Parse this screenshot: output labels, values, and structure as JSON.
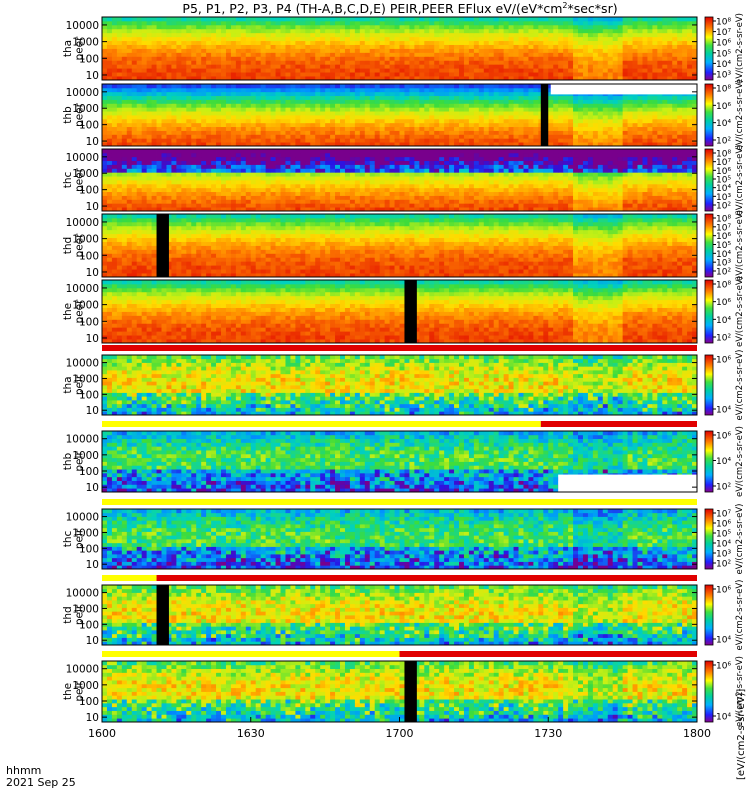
{
  "title": "P5, P1, P2, P3, P4 (TH-A,B,C,D,E) PEIR,PEER EFlux eV/(eV*cm",
  "title_sup": "2",
  "title_tail": "*sec*sr)",
  "time_axis": {
    "corner_label": "hhmm",
    "date_label": "2021 Sep 25",
    "ticks": [
      "1600",
      "1630",
      "1700",
      "1730",
      "1800"
    ],
    "range_minutes": [
      0,
      120
    ]
  },
  "colorbar_unit": "eV/(cm2-s-sr-eV)",
  "colorbar_side_label": "[eV/(cm2-s-sr-eV)]",
  "chart_data": {
    "type": "heatmap",
    "xlabel": "hhmm",
    "x_range": [
      "1600",
      "1800"
    ],
    "ylabel_unit": "eV",
    "yscale": "log",
    "colormap": "rainbow",
    "panels": [
      {
        "probe": "tha",
        "species": "peer",
        "label": [
          "tha",
          "peer"
        ],
        "yticks": [
          "10",
          "100",
          "1000",
          "10000"
        ],
        "ylim": [
          5,
          30000
        ],
        "cb_ticks": [
          "10⁸",
          "10⁷",
          "10⁶",
          "10⁵",
          "10⁴",
          "10³"
        ],
        "cb_range": [
          3,
          8
        ],
        "mode_bar": false,
        "gaps": []
      },
      {
        "probe": "thb",
        "species": "peer",
        "label": [
          "thb",
          "peer"
        ],
        "yticks": [
          "10",
          "100",
          "1000",
          "10000"
        ],
        "ylim": [
          5,
          30000
        ],
        "cb_ticks": [
          "10⁸",
          "10⁶",
          "10⁴",
          "10²"
        ],
        "cb_range": [
          2,
          8
        ],
        "mode_bar": false,
        "gaps": [
          {
            "t0": 88.5,
            "t1": 90.0
          },
          {
            "t0": 90.5,
            "t1": 120,
            "emin": 7000
          }
        ]
      },
      {
        "probe": "thc",
        "species": "peer",
        "label": [
          "thc",
          "peer"
        ],
        "yticks": [
          "10",
          "100",
          "1000",
          "10000"
        ],
        "ylim": [
          5,
          30000
        ],
        "cb_ticks": [
          "10⁸",
          "10⁷",
          "10⁶",
          "10⁵",
          "10⁴",
          "10³",
          "10²"
        ],
        "cb_range": [
          2,
          8
        ],
        "mode_bar": false,
        "gaps": []
      },
      {
        "probe": "thd",
        "species": "peer",
        "label": [
          "thd",
          "peer"
        ],
        "yticks": [
          "10",
          "100",
          "1000",
          "10000"
        ],
        "ylim": [
          5,
          30000
        ],
        "cb_ticks": [
          "10⁸",
          "10⁷",
          "10⁶",
          "10⁵",
          "10⁴",
          "10³",
          "10²"
        ],
        "cb_range": [
          2,
          8
        ],
        "mode_bar": false,
        "gaps": [
          {
            "t0": 11.0,
            "t1": 13.5
          }
        ]
      },
      {
        "probe": "the",
        "species": "peer",
        "label": [
          "the",
          "peer"
        ],
        "yticks": [
          "10",
          "100",
          "1000",
          "10000"
        ],
        "ylim": [
          5,
          30000
        ],
        "cb_ticks": [
          "10⁸",
          "10⁶",
          "10⁴",
          "10²"
        ],
        "cb_range": [
          2,
          8
        ],
        "mode_bar": false,
        "gaps": [
          {
            "t0": 61.0,
            "t1": 63.5
          }
        ]
      },
      {
        "probe": "tha",
        "species": "peir",
        "label": [
          "tha",
          "peir"
        ],
        "yticks": [
          "10",
          "100",
          "1000",
          "10000"
        ],
        "ylim": [
          5,
          30000
        ],
        "cb_ticks": [
          "10⁶",
          "10⁴"
        ],
        "cb_range": [
          3,
          7
        ],
        "mode_bar": true,
        "mode_switch": 0,
        "gaps": []
      },
      {
        "probe": "thb",
        "species": "peir",
        "label": [
          "thb",
          "peir"
        ],
        "yticks": [
          "10",
          "100",
          "1000",
          "10000"
        ],
        "ylim": [
          5,
          30000
        ],
        "cb_ticks": [
          "10⁶",
          "10⁴",
          "10²"
        ],
        "cb_range": [
          2,
          7
        ],
        "mode_bar": true,
        "mode_switch": 88.5,
        "gaps": [
          {
            "t0": 92,
            "t1": 120,
            "emin": 5,
            "emax": 60
          }
        ]
      },
      {
        "probe": "thc",
        "species": "peir",
        "label": [
          "thc",
          "peir"
        ],
        "yticks": [
          "10",
          "100",
          "1000",
          "10000"
        ],
        "ylim": [
          5,
          30000
        ],
        "cb_ticks": [
          "10⁷",
          "10⁶",
          "10⁵",
          "10⁴",
          "10³",
          "10²"
        ],
        "cb_range": [
          2,
          7
        ],
        "mode_bar": true,
        "mode_switch": 120,
        "gaps": []
      },
      {
        "probe": "thd",
        "species": "peir",
        "label": [
          "thd",
          "peir"
        ],
        "yticks": [
          "10",
          "100",
          "1000",
          "10000"
        ],
        "ylim": [
          5,
          30000
        ],
        "cb_ticks": [
          "10⁶",
          "10⁴"
        ],
        "cb_range": [
          3,
          7
        ],
        "mode_bar": true,
        "mode_switch": 11,
        "gaps": [
          {
            "t0": 11.0,
            "t1": 13.5
          }
        ]
      },
      {
        "probe": "the",
        "species": "peir",
        "label": [
          "the",
          "peir"
        ],
        "yticks": [
          "10",
          "100",
          "1000",
          "10000"
        ],
        "ylim": [
          5,
          30000
        ],
        "cb_ticks": [
          "10⁶",
          "10⁴"
        ],
        "cb_range": [
          3,
          7
        ],
        "mode_bar": true,
        "mode_switch": 60,
        "gaps": [
          {
            "t0": 61.0,
            "t1": 63.5
          }
        ]
      }
    ]
  }
}
